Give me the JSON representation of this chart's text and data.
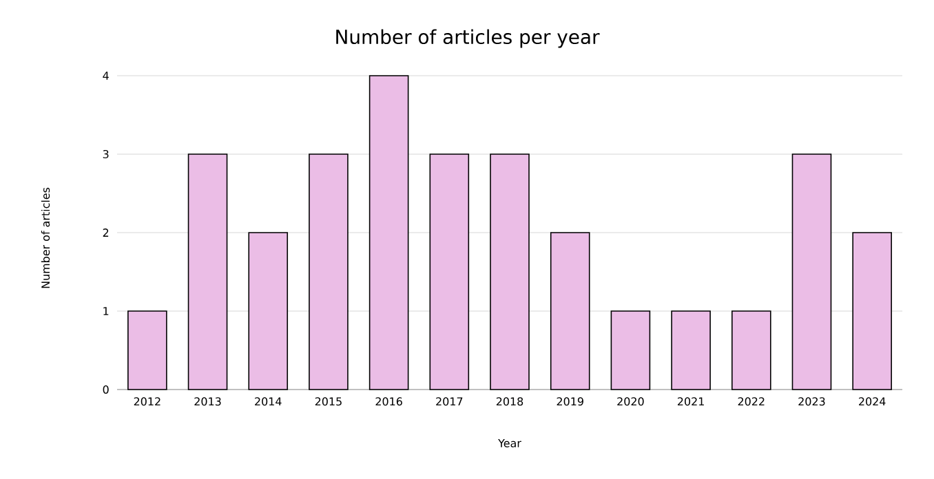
{
  "chart_data": {
    "type": "bar",
    "title": "Number of articles per year",
    "xlabel": "Year",
    "ylabel": "Number of articles",
    "categories": [
      "2012",
      "2013",
      "2014",
      "2015",
      "2016",
      "2017",
      "2018",
      "2019",
      "2020",
      "2021",
      "2022",
      "2023",
      "2024"
    ],
    "values": [
      1,
      3,
      2,
      3,
      4,
      3,
      3,
      2,
      1,
      1,
      1,
      3,
      2
    ],
    "color": "#ebbde6",
    "ylim": [
      0,
      4
    ],
    "yticks": [
      0,
      1,
      2,
      3,
      4
    ],
    "grid": "y"
  }
}
